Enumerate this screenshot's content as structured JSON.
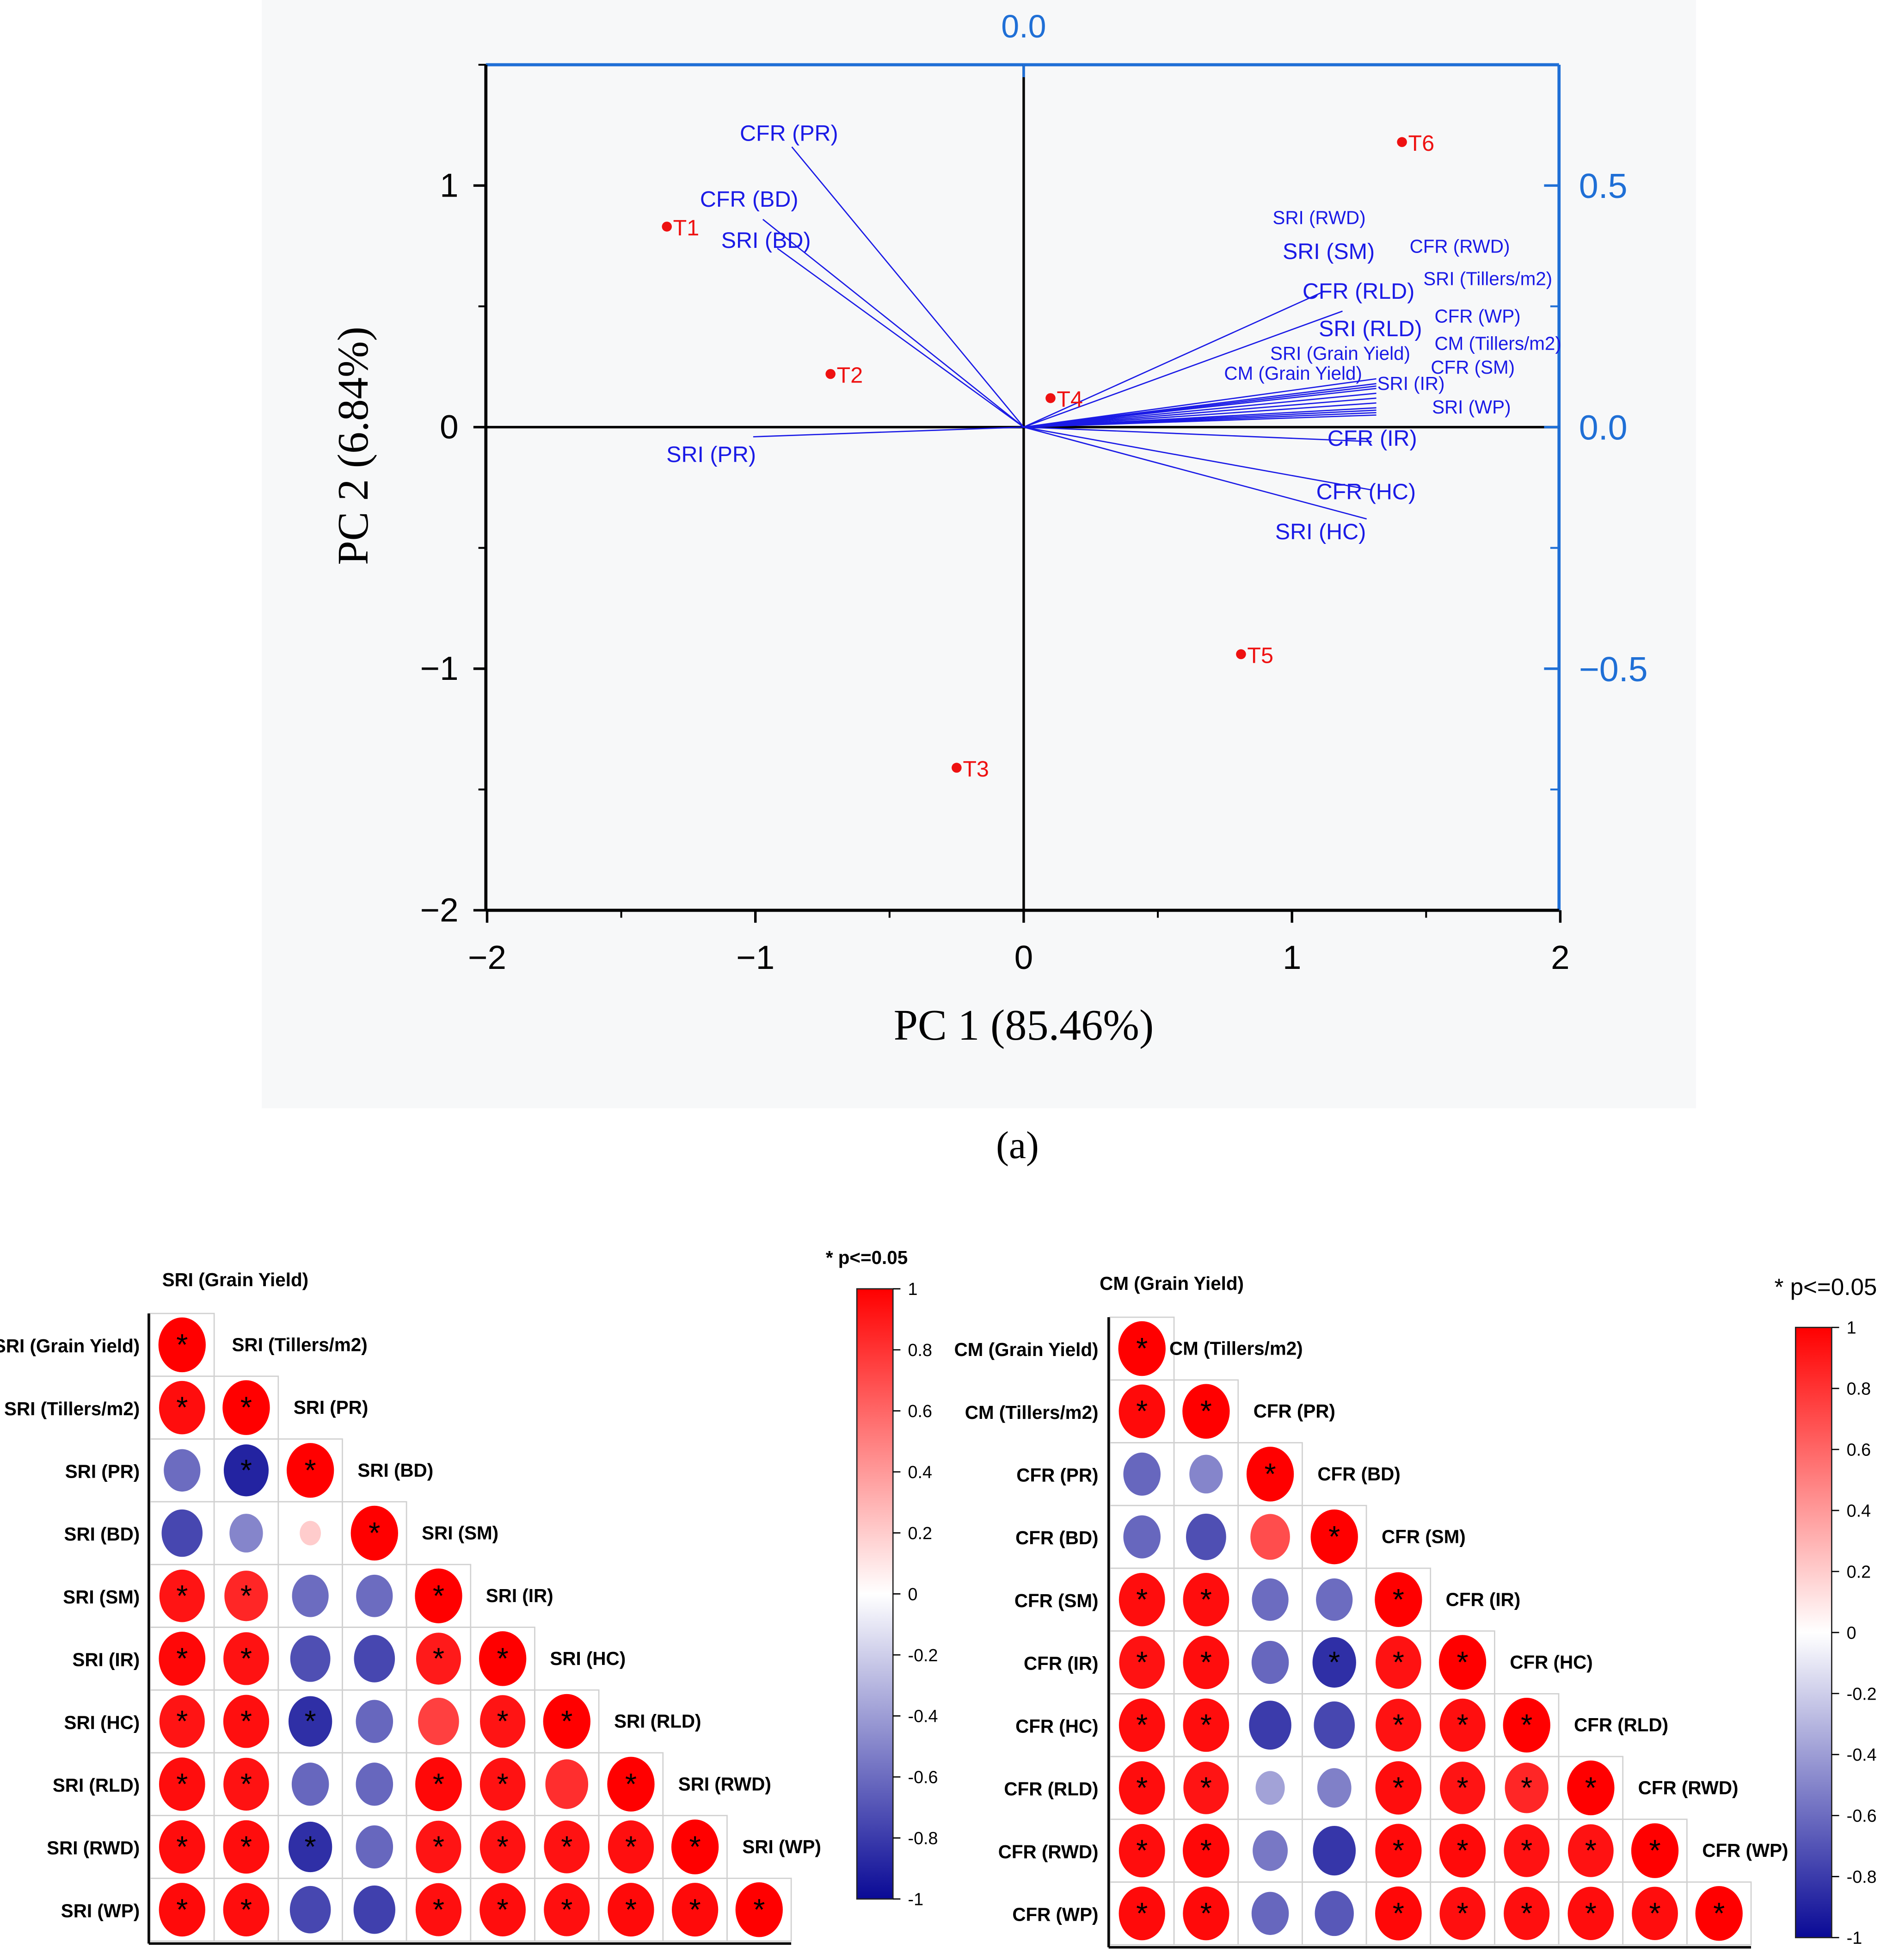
{
  "caption": "(a)",
  "chart_data": [
    {
      "type": "scatter",
      "subtype": "pca-biplot",
      "title": "",
      "xlabel": "PC 1 (85.46%)",
      "ylabel": "PC 2 (6.84%)",
      "xlim": [
        -2,
        2
      ],
      "ylim": [
        -2,
        1.5
      ],
      "xticks": [
        "−2",
        "−1",
        "0",
        "1",
        "2"
      ],
      "xtick_values": [
        -2,
        -1,
        0,
        1,
        2
      ],
      "yticks": [
        "1",
        "0",
        "−1",
        "−2"
      ],
      "ytick_values": [
        1,
        0,
        -1,
        -2
      ],
      "top_axis_ticks": [
        "0.0"
      ],
      "right_axis_ticks": [
        "0.5",
        "0.0",
        "−0.5"
      ],
      "right_axis_values": [
        0.5,
        0,
        -0.5
      ],
      "colors": {
        "scores": "#ee1111",
        "loadings": "#1a1ae6",
        "secondary_axis": "#1f6fd6",
        "axis": "#000000"
      },
      "scores": [
        {
          "label": "T1",
          "x": -1.33,
          "y": 0.83
        },
        {
          "label": "T2",
          "x": -0.72,
          "y": 0.22
        },
        {
          "label": "T3",
          "x": -0.25,
          "y": -1.41
        },
        {
          "label": "T4",
          "x": 0.1,
          "y": 0.12
        },
        {
          "label": "T5",
          "x": 0.81,
          "y": -0.94
        },
        {
          "label": "T6",
          "x": 1.41,
          "y": 1.18
        }
      ],
      "loadings": [
        {
          "label": "CFR (PR)",
          "x": -0.48,
          "y": 0.58
        },
        {
          "label": "CFR (BD)",
          "x": -0.54,
          "y": 0.43
        },
        {
          "label": "SRI (BD)",
          "x": -0.51,
          "y": 0.37
        },
        {
          "label": "SRI (PR)",
          "x": -0.56,
          "y": -0.02
        },
        {
          "label": "SRI (RWD)",
          "x": 0.73,
          "y": 0.08
        },
        {
          "label": "SRI (SM)",
          "x": 0.73,
          "y": 0.07
        },
        {
          "label": "CFR (RWD)",
          "x": 0.73,
          "y": 0.06
        },
        {
          "label": "SRI (Tillers/m2)",
          "x": 0.73,
          "y": 0.05
        },
        {
          "label": "CFR (RLD)",
          "x": 0.62,
          "y": 0.28
        },
        {
          "label": "CFR (WP)",
          "x": 0.73,
          "y": 0.04
        },
        {
          "label": "SRI (RLD)",
          "x": 0.66,
          "y": 0.24
        },
        {
          "label": "CM (Tillers/m2)",
          "x": 0.73,
          "y": 0.035
        },
        {
          "label": "SRI (Grain Yield)",
          "x": 0.73,
          "y": 0.1
        },
        {
          "label": "CFR (SM)",
          "x": 0.73,
          "y": 0.03
        },
        {
          "label": "CM (Grain Yield)",
          "x": 0.73,
          "y": 0.085
        },
        {
          "label": "SRI (IR)",
          "x": 0.73,
          "y": 0.09
        },
        {
          "label": "SRI (WP)",
          "x": 0.73,
          "y": 0.025
        },
        {
          "label": "CFR (IR)",
          "x": 0.72,
          "y": -0.03
        },
        {
          "label": "CFR (HC)",
          "x": 0.72,
          "y": -0.13
        },
        {
          "label": "SRI (HC)",
          "x": 0.71,
          "y": -0.19
        }
      ]
    },
    {
      "type": "heatmap",
      "subtype": "correlation-lower-triangle",
      "legend_title": "* p<=0.05",
      "colorbar_ticks": [
        "1",
        "0.8",
        "0.6",
        "0.4",
        "0.2",
        "0",
        "-0.2",
        "-0.4",
        "-0.6",
        "-0.8",
        "-1"
      ],
      "colorbar_range": [
        -1,
        1
      ],
      "variables": [
        "SRI (Grain Yield)",
        "SRI (Tillers/m2)",
        "SRI (PR)",
        "SRI (BD)",
        "SRI (SM)",
        "SRI (IR)",
        "SRI (HC)",
        "SRI (RLD)",
        "SRI (RWD)",
        "SRI (WP)"
      ],
      "values": [
        [
          1
        ],
        [
          0.95,
          1
        ],
        [
          -0.6,
          -0.9,
          1
        ],
        [
          -0.75,
          -0.5,
          0.2,
          1
        ],
        [
          0.92,
          0.85,
          -0.6,
          -0.6,
          1
        ],
        [
          0.97,
          0.93,
          -0.72,
          -0.75,
          0.9,
          1
        ],
        [
          0.92,
          0.94,
          -0.85,
          -0.62,
          0.75,
          0.92,
          1
        ],
        [
          0.95,
          0.93,
          -0.62,
          -0.62,
          0.97,
          0.93,
          0.82,
          1
        ],
        [
          0.95,
          0.95,
          -0.85,
          -0.62,
          0.92,
          0.93,
          0.93,
          0.94,
          1
        ],
        [
          0.96,
          0.95,
          -0.75,
          -0.78,
          0.94,
          0.95,
          0.94,
          0.96,
          0.96,
          1
        ]
      ],
      "significant": [
        [
          1
        ],
        [
          1,
          1
        ],
        [
          0,
          1,
          1
        ],
        [
          0,
          0,
          0,
          1
        ],
        [
          1,
          1,
          0,
          0,
          1
        ],
        [
          1,
          1,
          0,
          0,
          1,
          1
        ],
        [
          1,
          1,
          1,
          0,
          0,
          1,
          1
        ],
        [
          1,
          1,
          0,
          0,
          1,
          1,
          0,
          1
        ],
        [
          1,
          1,
          1,
          0,
          1,
          1,
          1,
          1,
          1
        ],
        [
          1,
          1,
          0,
          0,
          1,
          1,
          1,
          1,
          1,
          1
        ]
      ],
      "colors": {
        "neg": "#0a0a96",
        "zero": "#ffffff",
        "pos": "#ff0000"
      }
    },
    {
      "type": "heatmap",
      "subtype": "correlation-lower-triangle",
      "legend_title": "* p<=0.05",
      "colorbar_ticks": [
        "1",
        "0.8",
        "0.6",
        "0.4",
        "0.2",
        "0",
        "-0.2",
        "-0.4",
        "-0.6",
        "-0.8",
        "-1"
      ],
      "colorbar_range": [
        -1,
        1
      ],
      "variables": [
        "CM (Grain Yield)",
        "CM (Tillers/m2)",
        "CFR (PR)",
        "CFR (BD)",
        "CFR (SM)",
        "CFR (IR)",
        "CFR (HC)",
        "CFR (RLD)",
        "CFR (RWD)",
        "CFR (WP)"
      ],
      "values": [
        [
          1
        ],
        [
          0.96,
          1
        ],
        [
          -0.62,
          -0.5,
          1
        ],
        [
          -0.62,
          -0.72,
          0.7,
          1
        ],
        [
          0.95,
          0.95,
          -0.6,
          -0.6,
          1
        ],
        [
          0.93,
          0.95,
          -0.62,
          -0.85,
          0.93,
          1
        ],
        [
          0.95,
          0.95,
          -0.8,
          -0.75,
          0.93,
          0.94,
          1
        ],
        [
          0.95,
          0.92,
          -0.38,
          -0.52,
          0.95,
          0.92,
          0.85,
          1
        ],
        [
          0.95,
          0.97,
          -0.55,
          -0.82,
          0.96,
          0.96,
          0.93,
          0.93,
          1
        ],
        [
          0.96,
          0.96,
          -0.62,
          -0.68,
          0.97,
          0.94,
          0.94,
          0.95,
          0.95,
          1
        ]
      ],
      "significant": [
        [
          1
        ],
        [
          1,
          1
        ],
        [
          0,
          0,
          1
        ],
        [
          0,
          0,
          0,
          1
        ],
        [
          1,
          1,
          0,
          0,
          1
        ],
        [
          1,
          1,
          0,
          1,
          1,
          1
        ],
        [
          1,
          1,
          0,
          0,
          1,
          1,
          1
        ],
        [
          1,
          1,
          0,
          0,
          1,
          1,
          1,
          1
        ],
        [
          1,
          1,
          0,
          0,
          1,
          1,
          1,
          1,
          1
        ],
        [
          1,
          1,
          0,
          0,
          1,
          1,
          1,
          1,
          1,
          1
        ]
      ],
      "colors": {
        "neg": "#0a0a96",
        "zero": "#ffffff",
        "pos": "#ff0000"
      }
    }
  ]
}
